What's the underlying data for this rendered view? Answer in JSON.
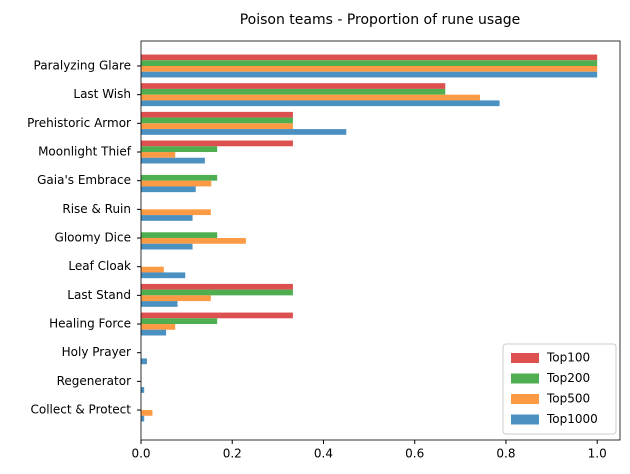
{
  "chart_data": {
    "type": "barh",
    "title": "Poison teams - Proportion of rune usage",
    "categories": [
      "Paralyzing Glare",
      "Last Wish",
      "Prehistoric Armor",
      "Moonlight Thief",
      "Gaia's Embrace",
      "Rise & Ruin",
      "Gloomy Dice",
      "Leaf Cloak",
      "Last Stand",
      "Healing Force",
      "Holy Prayer",
      "Regenerator",
      "Collect & Protect"
    ],
    "series": [
      {
        "name": "Top100",
        "color": "#dc5050",
        "values": [
          1,
          0.667,
          0.333,
          0.333,
          0,
          0,
          0,
          0,
          0.333,
          0.333,
          0,
          0,
          0
        ]
      },
      {
        "name": "Top200",
        "color": "#4fae4f",
        "values": [
          1,
          0.667,
          0.333,
          0.167,
          0.167,
          0,
          0.167,
          0,
          0.333,
          0.167,
          0,
          0,
          0
        ]
      },
      {
        "name": "Top500",
        "color": "#fd9a44",
        "values": [
          1,
          0.743,
          0.333,
          0.075,
          0.154,
          0.153,
          0.23,
          0.05,
          0.153,
          0.075,
          0,
          0,
          0.025
        ]
      },
      {
        "name": "Top1000",
        "color": "#4a90c0",
        "values": [
          1,
          0.786,
          0.45,
          0.14,
          0.12,
          0.113,
          0.113,
          0.097,
          0.08,
          0.055,
          0.013,
          0.007,
          0.007
        ]
      }
    ],
    "xlim": [
      0,
      1.05
    ],
    "xticks": [
      {
        "value": 0,
        "label": "0.0"
      },
      0.2,
      0.4,
      0.6,
      0.8,
      {
        "value": 1,
        "label": "1.0"
      }
    ],
    "legend": "lower right"
  }
}
